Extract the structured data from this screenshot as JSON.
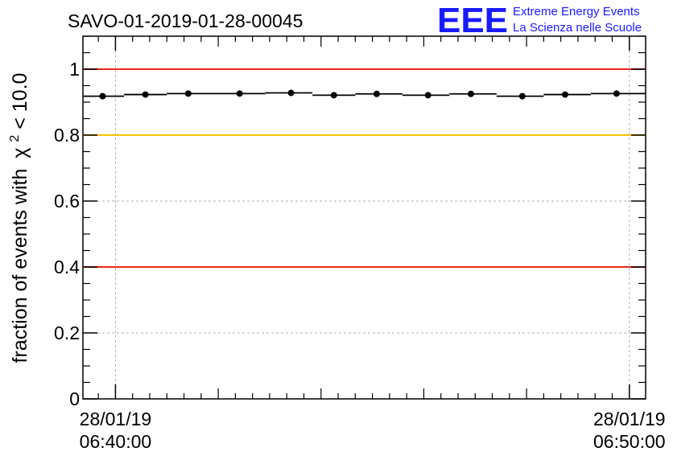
{
  "title": "SAVO-01-2019-01-28-00045",
  "logo": {
    "mark": "EEE",
    "line1": "Extreme Energy Events",
    "line2": "La Scienza nelle Scuole",
    "color": "#1a1aff"
  },
  "chart_data": {
    "type": "scatter",
    "title": "SAVO-01-2019-01-28-00045",
    "ylabel": "fraction of events with",
    "ylabel_math": {
      "symbol": "χ",
      "sup": "2",
      "rest": " < 10.0"
    },
    "xlabel": "",
    "ylim": [
      0,
      1.1
    ],
    "yticks": [
      0,
      0.2,
      0.4,
      0.6,
      0.8,
      1
    ],
    "ytick_labels": [
      "0",
      "0.2",
      "0.4",
      "0.6",
      "0.8",
      "1"
    ],
    "xlim": [
      "2019-01-28 06:39:22",
      "2019-01-28 06:50:19"
    ],
    "xticks": [
      {
        "at": "2019-01-28 06:40:00",
        "date": "28/01/19",
        "time": "06:40:00"
      },
      {
        "at": "2019-01-28 06:50:00",
        "date": "28/01/19",
        "time": "06:50:00"
      }
    ],
    "grid": true,
    "reference_lines": [
      {
        "y": 1.0,
        "color": "#e8281e"
      },
      {
        "y": 0.8,
        "color": "#f5c200"
      },
      {
        "y": 0.4,
        "color": "#e8281e"
      }
    ],
    "series": [
      {
        "marker_color": "#000000",
        "points": [
          {
            "x": "2019-01-28 06:39:45",
            "y": 0.918
          },
          {
            "x": "2019-01-28 06:40:35",
            "y": 0.923
          },
          {
            "x": "2019-01-28 06:41:25",
            "y": 0.926
          },
          {
            "x": "2019-01-28 06:42:25",
            "y": 0.926
          },
          {
            "x": "2019-01-28 06:43:25",
            "y": 0.928
          },
          {
            "x": "2019-01-28 06:44:15",
            "y": 0.921
          },
          {
            "x": "2019-01-28 06:45:05",
            "y": 0.925
          },
          {
            "x": "2019-01-28 06:46:05",
            "y": 0.921
          },
          {
            "x": "2019-01-28 06:46:55",
            "y": 0.925
          },
          {
            "x": "2019-01-28 06:47:55",
            "y": 0.918
          },
          {
            "x": "2019-01-28 06:48:45",
            "y": 0.923
          },
          {
            "x": "2019-01-28 06:49:45",
            "y": 0.926
          }
        ]
      }
    ]
  }
}
